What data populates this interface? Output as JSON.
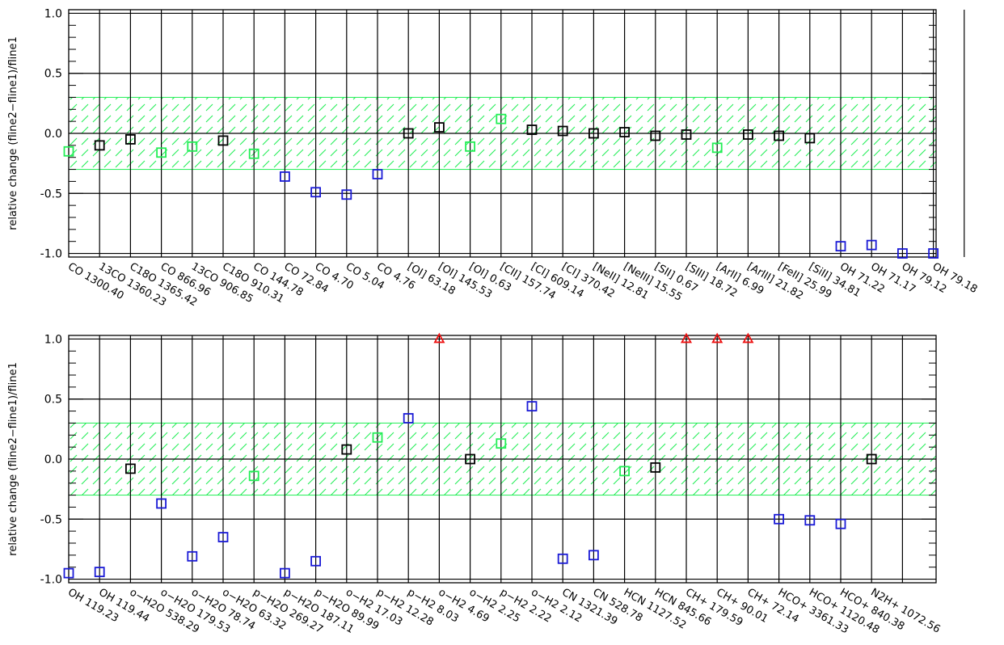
{
  "colors": {
    "black": "#000000",
    "green": "#22ee55",
    "blue": "#1a1ad6",
    "red": "#ee1111",
    "band": "#22ee55"
  },
  "chart_data": [
    {
      "type": "scatter",
      "ylabel": "relative change (fline2−fline1)/fline1",
      "ylim": [
        -1.03,
        1.03
      ],
      "yticks": [
        "1.0",
        "0.5",
        "0.0",
        "-0.5",
        "-1.0"
      ],
      "band": [
        -0.3,
        0.3
      ],
      "grid": true,
      "categories": [
        "CO 1300.40",
        "13CO 1360.23",
        "C18O 1365.42",
        "CO 866.96",
        "13CO 906.85",
        "C18O 910.31",
        "CO 144.78",
        "CO 72.84",
        "CO 4.70",
        "CO 5.04",
        "CO 4.76",
        "[OI] 63.18",
        "[OI] 145.53",
        "[OI] 0.63",
        "[CII] 157.74",
        "[CI] 609.14",
        "[CI] 370.42",
        "[NeII] 12.81",
        "[NeIII] 15.55",
        "[SII] 0.67",
        "[SIII] 18.72",
        "[ArII] 6.99",
        "[ArIII] 21.82",
        "[FeII] 25.99",
        "[SiII] 34.81",
        "OH 71.22",
        "OH 71.17",
        "OH 79.12",
        "OH 79.18"
      ],
      "points": [
        {
          "y": -0.15,
          "c": "green"
        },
        {
          "y": -0.1,
          "c": "black"
        },
        {
          "y": -0.05,
          "c": "black"
        },
        {
          "y": -0.16,
          "c": "green"
        },
        {
          "y": -0.11,
          "c": "green"
        },
        {
          "y": -0.06,
          "c": "black"
        },
        {
          "y": -0.17,
          "c": "green"
        },
        {
          "y": -0.36,
          "c": "blue"
        },
        {
          "y": -0.49,
          "c": "blue"
        },
        {
          "y": -0.51,
          "c": "blue"
        },
        {
          "y": -0.34,
          "c": "blue"
        },
        {
          "y": 0.0,
          "c": "black"
        },
        {
          "y": 0.05,
          "c": "black"
        },
        {
          "y": -0.11,
          "c": "green"
        },
        {
          "y": 0.12,
          "c": "green"
        },
        {
          "y": 0.03,
          "c": "black"
        },
        {
          "y": 0.02,
          "c": "black"
        },
        {
          "y": 0.0,
          "c": "black"
        },
        {
          "y": 0.01,
          "c": "black"
        },
        {
          "y": -0.02,
          "c": "black"
        },
        {
          "y": -0.01,
          "c": "black"
        },
        {
          "y": -0.12,
          "c": "green"
        },
        {
          "y": -0.01,
          "c": "black"
        },
        {
          "y": -0.02,
          "c": "black"
        },
        {
          "y": -0.04,
          "c": "black"
        },
        {
          "y": -0.94,
          "c": "blue"
        },
        {
          "y": -0.93,
          "c": "blue"
        },
        {
          "y": -1.0,
          "c": "blue"
        },
        {
          "y": -1.0,
          "c": "blue"
        }
      ]
    },
    {
      "type": "scatter",
      "ylabel": "relative change (fline2−fline1)/fline1",
      "ylim": [
        -1.03,
        1.03
      ],
      "yticks": [
        "1.0",
        "0.5",
        "0.0",
        "-0.5",
        "-1.0"
      ],
      "band": [
        -0.3,
        0.3
      ],
      "grid": true,
      "categories": [
        "OH 119.23",
        "OH 119.44",
        "o−H2O 538.29",
        "o−H2O 179.53",
        "o−H2O 78.74",
        "o−H2O 63.32",
        "p−H2O 269.27",
        "p−H2O 187.11",
        "p−H2O 89.99",
        "o−H2 17.03",
        "p−H2 12.28",
        "p−H2 8.03",
        "o−H2 4.69",
        "o−H2 2.25",
        "p−H2 2.22",
        "o−H2 2.12",
        "CN 1321.39",
        "CN 528.78",
        "HCN 1127.52",
        "HCN 845.66",
        "CH+ 179.59",
        "CH+ 90.01",
        "CH+ 72.14",
        "HCO+ 3361.33",
        "HCO+ 1120.48",
        "HCO+ 840.38",
        "N2H+ 1072.56"
      ],
      "points": [
        {
          "y": -0.95,
          "c": "blue",
          "s": "square"
        },
        {
          "y": -0.94,
          "c": "blue",
          "s": "square"
        },
        {
          "y": -0.08,
          "c": "black",
          "s": "square"
        },
        {
          "y": -0.37,
          "c": "blue",
          "s": "square"
        },
        {
          "y": -0.81,
          "c": "blue",
          "s": "square"
        },
        {
          "y": -0.65,
          "c": "blue",
          "s": "square"
        },
        {
          "y": -0.14,
          "c": "green",
          "s": "square"
        },
        {
          "y": -0.95,
          "c": "blue",
          "s": "square"
        },
        {
          "y": -0.85,
          "c": "blue",
          "s": "square"
        },
        {
          "y": 0.08,
          "c": "black",
          "s": "square"
        },
        {
          "y": 0.18,
          "c": "green",
          "s": "square"
        },
        {
          "y": 0.34,
          "c": "blue",
          "s": "square"
        },
        {
          "y": 1.0,
          "c": "red",
          "s": "triangle"
        },
        {
          "y": 0.0,
          "c": "black",
          "s": "square"
        },
        {
          "y": 0.13,
          "c": "green",
          "s": "square"
        },
        {
          "y": 0.44,
          "c": "blue",
          "s": "square"
        },
        {
          "y": -0.83,
          "c": "blue",
          "s": "square"
        },
        {
          "y": -0.8,
          "c": "blue",
          "s": "square"
        },
        {
          "y": -0.1,
          "c": "green",
          "s": "square"
        },
        {
          "y": -0.07,
          "c": "black",
          "s": "square"
        },
        {
          "y": 1.0,
          "c": "red",
          "s": "triangle"
        },
        {
          "y": 1.0,
          "c": "red",
          "s": "triangle"
        },
        {
          "y": 1.0,
          "c": "red",
          "s": "triangle"
        },
        {
          "y": -0.5,
          "c": "blue",
          "s": "square"
        },
        {
          "y": -0.51,
          "c": "blue",
          "s": "square"
        },
        {
          "y": -0.54,
          "c": "blue",
          "s": "square"
        },
        {
          "y": 0.0,
          "c": "black",
          "s": "square"
        }
      ]
    }
  ]
}
